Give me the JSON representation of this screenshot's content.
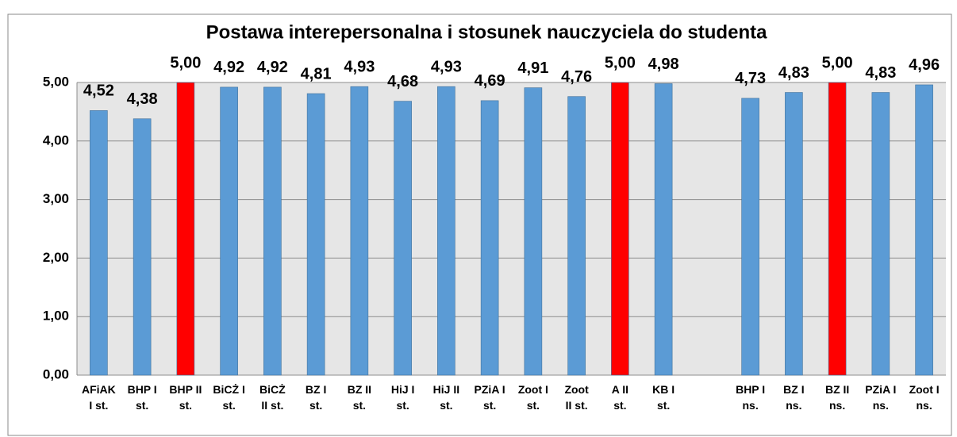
{
  "chart_data": {
    "type": "bar",
    "title": "Postawa interepersonalna i stosunek nauczyciela do studenta",
    "categories": [
      "AFiAK\nI st.",
      "BHP I\nst.",
      "BHP II\nst.",
      "BiCŻ I\nst.",
      "BiCŻ\nII st.",
      "BZ I\nst.",
      "BZ II\nst.",
      "HiJ I\nst.",
      "HiJ II\nst.",
      "PZiA I\nst.",
      "Zoot I\nst.",
      "Zoot\nII st.",
      "A II\nst.",
      "KB I\nst.",
      null,
      "BHP I\nns.",
      "BZ I\nns.",
      "BZ II\nns.",
      "PZiA I\nns.",
      "Zoot I\nns."
    ],
    "values": [
      4.52,
      4.38,
      5.0,
      4.92,
      4.92,
      4.81,
      4.93,
      4.68,
      4.93,
      4.69,
      4.91,
      4.76,
      5.0,
      4.98,
      null,
      4.73,
      4.83,
      5.0,
      4.83,
      4.96
    ],
    "value_labels": [
      "4,52",
      "4,38",
      "5,00",
      "4,92",
      "4,92",
      "4,81",
      "4,93",
      "4,68",
      "4,93",
      "4,69",
      "4,91",
      "4,76",
      "5,00",
      "4,98",
      null,
      "4,73",
      "4,83",
      "5,00",
      "4,83",
      "4,96"
    ],
    "colors": [
      "#5b9bd5",
      "#5b9bd5",
      "#ff0000",
      "#5b9bd5",
      "#5b9bd5",
      "#5b9bd5",
      "#5b9bd5",
      "#5b9bd5",
      "#5b9bd5",
      "#5b9bd5",
      "#5b9bd5",
      "#5b9bd5",
      "#ff0000",
      "#5b9bd5",
      null,
      "#5b9bd5",
      "#5b9bd5",
      "#ff0000",
      "#5b9bd5",
      "#5b9bd5"
    ],
    "ylim": [
      0,
      5
    ],
    "yticks": [
      {
        "value": 0,
        "label": "0,00"
      },
      {
        "value": 1,
        "label": "1,00"
      },
      {
        "value": 2,
        "label": "2,00"
      },
      {
        "value": 3,
        "label": "3,00"
      },
      {
        "value": 4,
        "label": "4,00"
      },
      {
        "value": 5,
        "label": "5,00"
      }
    ],
    "grid": true
  }
}
